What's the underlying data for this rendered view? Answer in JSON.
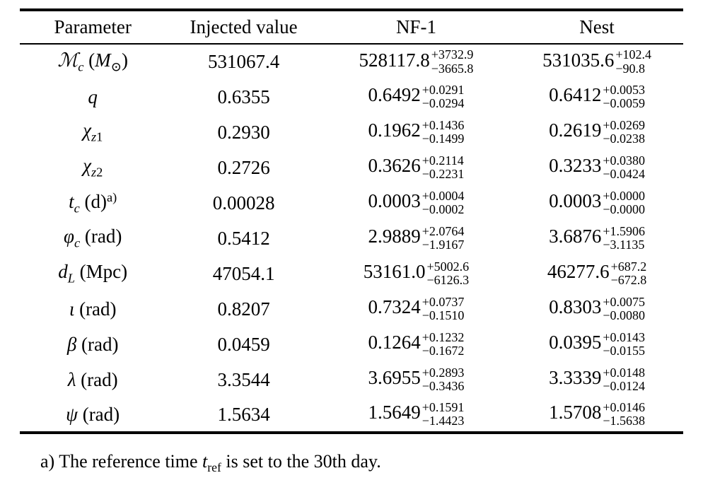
{
  "table": {
    "headers": [
      "Parameter",
      "Injected value",
      "NF-1",
      "Nest"
    ],
    "rows": [
      {
        "param_parts": [
          {
            "t": "ℳ",
            "s": "i"
          },
          {
            "t": "c",
            "s": "isub"
          },
          {
            "t": " (",
            "s": "n"
          },
          {
            "t": "M",
            "s": "i"
          },
          {
            "t": "⊙",
            "s": "sub"
          },
          {
            "t": ")",
            "s": "n"
          }
        ],
        "injected": "531067.4",
        "nf1": {
          "v": "528117.8",
          "p": "+3732.9",
          "m": "−3665.8"
        },
        "nest": {
          "v": "531035.6",
          "p": "+102.4",
          "m": "−90.8"
        }
      },
      {
        "param_parts": [
          {
            "t": "q",
            "s": "i"
          }
        ],
        "injected": "0.6355",
        "nf1": {
          "v": "0.6492",
          "p": "+0.0291",
          "m": "−0.0294"
        },
        "nest": {
          "v": "0.6412",
          "p": "+0.0053",
          "m": "−0.0059"
        }
      },
      {
        "param_parts": [
          {
            "t": "χ",
            "s": "i"
          },
          {
            "t": "z",
            "s": "isub"
          },
          {
            "t": "1",
            "s": "sub"
          }
        ],
        "injected": "0.2930",
        "nf1": {
          "v": "0.1962",
          "p": "+0.1436",
          "m": "−0.1499"
        },
        "nest": {
          "v": "0.2619",
          "p": "+0.0269",
          "m": "−0.0238"
        }
      },
      {
        "param_parts": [
          {
            "t": "χ",
            "s": "i"
          },
          {
            "t": "z",
            "s": "isub"
          },
          {
            "t": "2",
            "s": "sub"
          }
        ],
        "injected": "0.2726",
        "nf1": {
          "v": "0.3626",
          "p": "+0.2114",
          "m": "−0.2231"
        },
        "nest": {
          "v": "0.3233",
          "p": "+0.0380",
          "m": "−0.0424"
        }
      },
      {
        "param_parts": [
          {
            "t": "t",
            "s": "i"
          },
          {
            "t": "c",
            "s": "isub"
          },
          {
            "t": " (d)",
            "s": "n"
          },
          {
            "t": "a)",
            "s": "sup"
          }
        ],
        "injected": "0.00028",
        "nf1": {
          "v": "0.0003",
          "p": "+0.0004",
          "m": "−0.0002"
        },
        "nest": {
          "v": "0.0003",
          "p": "+0.0000",
          "m": "−0.0000"
        }
      },
      {
        "param_parts": [
          {
            "t": "φ",
            "s": "i"
          },
          {
            "t": "c",
            "s": "isub"
          },
          {
            "t": " (rad)",
            "s": "n"
          }
        ],
        "injected": "0.5412",
        "nf1": {
          "v": "2.9889",
          "p": "+2.0764",
          "m": "−1.9167"
        },
        "nest": {
          "v": "3.6876",
          "p": "+1.5906",
          "m": "−3.1135"
        }
      },
      {
        "param_parts": [
          {
            "t": "d",
            "s": "i"
          },
          {
            "t": "L",
            "s": "isub"
          },
          {
            "t": " (Mpc)",
            "s": "n"
          }
        ],
        "injected": "47054.1",
        "nf1": {
          "v": "53161.0",
          "p": "+5002.6",
          "m": "−6126.3"
        },
        "nest": {
          "v": "46277.6",
          "p": "+687.2",
          "m": "−672.8"
        }
      },
      {
        "param_parts": [
          {
            "t": "ι",
            "s": "i"
          },
          {
            "t": " (rad)",
            "s": "n"
          }
        ],
        "injected": "0.8207",
        "nf1": {
          "v": "0.7324",
          "p": "+0.0737",
          "m": "−0.1510"
        },
        "nest": {
          "v": "0.8303",
          "p": "+0.0075",
          "m": "−0.0080"
        }
      },
      {
        "param_parts": [
          {
            "t": "β",
            "s": "i"
          },
          {
            "t": " (rad)",
            "s": "n"
          }
        ],
        "injected": "0.0459",
        "nf1": {
          "v": "0.1264",
          "p": "+0.1232",
          "m": "−0.1672"
        },
        "nest": {
          "v": "0.0395",
          "p": "+0.0143",
          "m": "−0.0155"
        }
      },
      {
        "param_parts": [
          {
            "t": "λ",
            "s": "i"
          },
          {
            "t": " (rad)",
            "s": "n"
          }
        ],
        "injected": "3.3544",
        "nf1": {
          "v": "3.6955",
          "p": "+0.2893",
          "m": "−0.3436"
        },
        "nest": {
          "v": "3.3339",
          "p": "+0.0148",
          "m": "−0.0124"
        }
      },
      {
        "param_parts": [
          {
            "t": "ψ",
            "s": "i"
          },
          {
            "t": " (rad)",
            "s": "n"
          }
        ],
        "injected": "1.5634",
        "nf1": {
          "v": "1.5649",
          "p": "+0.1591",
          "m": "−1.4423"
        },
        "nest": {
          "v": "1.5708",
          "p": "+0.0146",
          "m": "−1.5638"
        }
      }
    ],
    "footnote_parts": [
      {
        "t": "a) The reference time ",
        "s": "n"
      },
      {
        "t": "t",
        "s": "i"
      },
      {
        "t": "ref",
        "s": "sub"
      },
      {
        "t": " is set to the 30th day.",
        "s": "n"
      }
    ]
  }
}
